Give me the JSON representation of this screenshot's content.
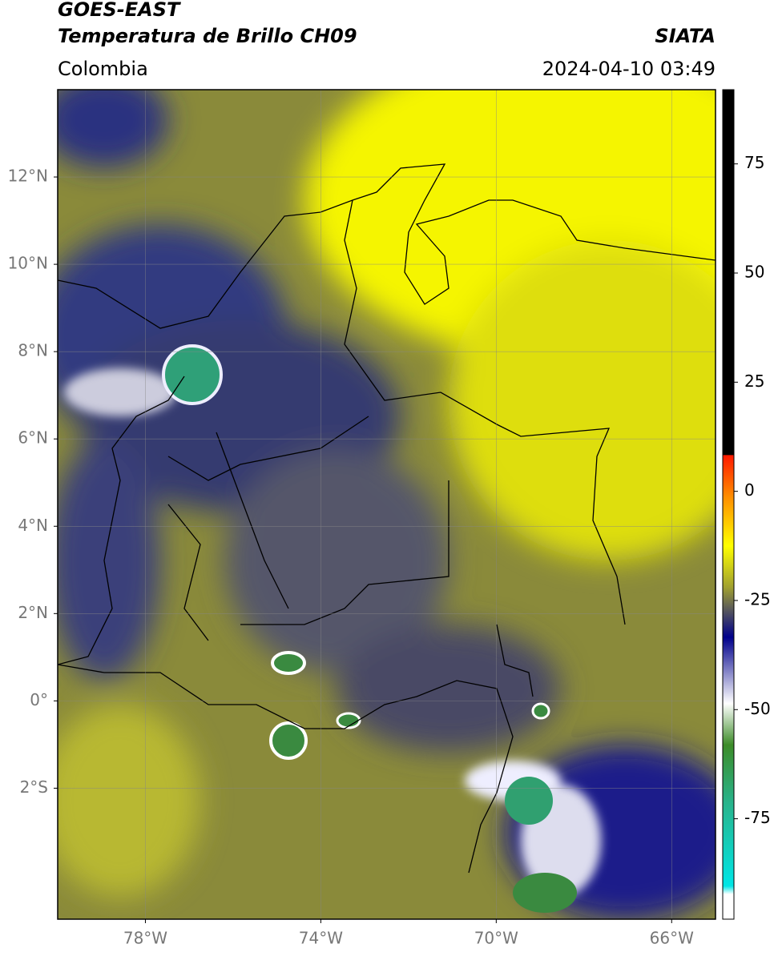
{
  "header": {
    "title": "GOES-EAST",
    "subtitle": "Temperatura de Brillo CH09",
    "region": "Colombia",
    "source": "SIATA",
    "timestamp": "2024-04-10 03:49"
  },
  "map": {
    "latlim": [
      -5,
      14
    ],
    "lonlim": [
      -80,
      -65
    ],
    "lat_ticks": [
      {
        "value": 12,
        "label": "12°N"
      },
      {
        "value": 10,
        "label": "10°N"
      },
      {
        "value": 8,
        "label": "8°N"
      },
      {
        "value": 6,
        "label": "6°N"
      },
      {
        "value": 4,
        "label": "4°N"
      },
      {
        "value": 2,
        "label": "2°N"
      },
      {
        "value": 0,
        "label": "0°"
      },
      {
        "value": -2,
        "label": "2°S"
      }
    ],
    "lon_ticks": [
      {
        "value": -78,
        "label": "78°W"
      },
      {
        "value": -74,
        "label": "74°W"
      },
      {
        "value": -70,
        "label": "70°W"
      },
      {
        "value": -66,
        "label": "66°W"
      }
    ]
  },
  "colorbar": {
    "lim": [
      -98,
      92
    ],
    "ticks": [
      75,
      50,
      25,
      0,
      -25,
      -50,
      -75
    ]
  }
}
